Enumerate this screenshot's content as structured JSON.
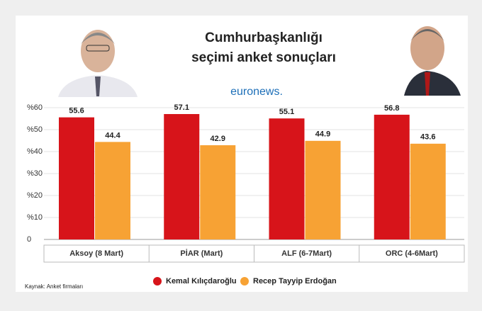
{
  "chart_data": {
    "type": "bar",
    "title": [
      "Cumhurbaşkanlığı",
      "seçimi anket sonuçları"
    ],
    "logo": "euronews.",
    "categories": [
      "Aksoy (8 Mart)",
      "PİAR (Mart)",
      "ALF (6-7Mart)",
      "ORC (4-6Mart)"
    ],
    "series": [
      {
        "name": "Kemal Kılıçdaroğlu",
        "color": "#d7141a",
        "values": [
          55.6,
          57.1,
          55.1,
          56.8
        ]
      },
      {
        "name": "Recep Tayyip Erdoğan",
        "color": "#f7a234",
        "values": [
          44.4,
          42.9,
          44.9,
          43.6
        ]
      }
    ],
    "ylim": [
      0,
      60
    ],
    "yticks": [
      0,
      {
        "value": 10,
        "label": "%10"
      },
      {
        "value": 20,
        "label": "%20"
      },
      {
        "value": 30,
        "label": "%30"
      },
      {
        "value": 40,
        "label": "%40"
      },
      {
        "value": 50,
        "label": "%50"
      },
      {
        "value": 60,
        "label": "%60"
      }
    ],
    "grid": true,
    "source": "Kaynak: Anket firmaları"
  }
}
